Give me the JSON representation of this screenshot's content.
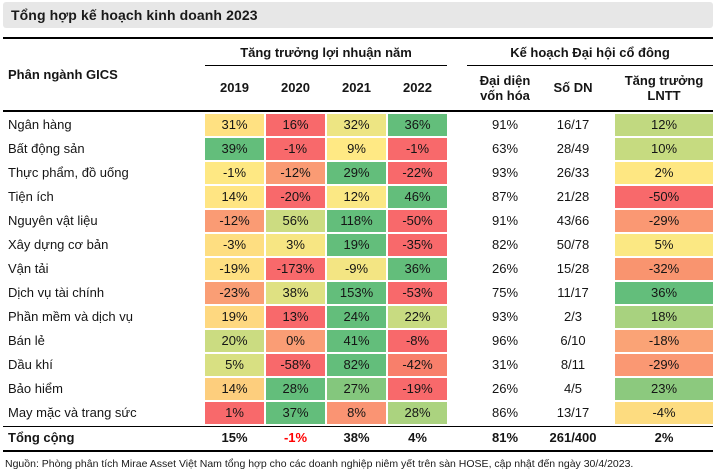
{
  "title": "Tổng hợp kế hoạch kinh doanh 2023",
  "colors": {
    "title_bar_bg": "#E7E7E7",
    "rule": "#000000",
    "total_negative_text": "#FF0000",
    "heat_red": "#F8696B",
    "heat_yellow": "#FFEB84",
    "heat_green": "#63BE7B"
  },
  "table": {
    "row_header": "Phân ngành GICS",
    "group1": {
      "label": "Tăng trưởng lợi nhuận năm",
      "columns": [
        "2019",
        "2020",
        "2021",
        "2022"
      ]
    },
    "group2": {
      "label": "Kế hoạch Đại hội cổ đông",
      "columns": [
        "Đại diện vốn hóa",
        "Số DN",
        "Tăng trưởng LNTT"
      ]
    },
    "rows": [
      {
        "label": "Ngân hàng",
        "growth": [
          {
            "v": "31%",
            "bg": "#FFE182"
          },
          {
            "v": "16%",
            "bg": "#F8696B"
          },
          {
            "v": "32%",
            "bg": "#EDE583"
          },
          {
            "v": "36%",
            "bg": "#63BE7B"
          }
        ],
        "cap": "91%",
        "count": "16/17",
        "lntt": {
          "v": "12%",
          "bg": "#C1D980"
        }
      },
      {
        "label": "Bất động sản",
        "growth": [
          {
            "v": "39%",
            "bg": "#63BE7B"
          },
          {
            "v": "-1%",
            "bg": "#F8696B"
          },
          {
            "v": "9%",
            "bg": "#FFE984"
          },
          {
            "v": "-1%",
            "bg": "#F8696B"
          }
        ],
        "cap": "63%",
        "count": "28/49",
        "lntt": {
          "v": "10%",
          "bg": "#C6DB80"
        }
      },
      {
        "label": "Thực phẩm, đồ uống",
        "growth": [
          {
            "v": "-1%",
            "bg": "#FEE883"
          },
          {
            "v": "-12%",
            "bg": "#FA9B74"
          },
          {
            "v": "29%",
            "bg": "#63BE7B"
          },
          {
            "v": "-22%",
            "bg": "#F8696B"
          }
        ],
        "cap": "93%",
        "count": "26/33",
        "lntt": {
          "v": "2%",
          "bg": "#FEE782"
        }
      },
      {
        "label": "Tiện ích",
        "growth": [
          {
            "v": "14%",
            "bg": "#FFE583"
          },
          {
            "v": "-20%",
            "bg": "#F8696B"
          },
          {
            "v": "12%",
            "bg": "#FBE884"
          },
          {
            "v": "46%",
            "bg": "#63BE7B"
          }
        ],
        "cap": "87%",
        "count": "21/28",
        "lntt": {
          "v": "-50%",
          "bg": "#F8696B"
        }
      },
      {
        "label": "Nguyên vật liệu",
        "growth": [
          {
            "v": "-12%",
            "bg": "#FA9B74"
          },
          {
            "v": "56%",
            "bg": "#CCDC81"
          },
          {
            "v": "118%",
            "bg": "#63BE7B"
          },
          {
            "v": "-50%",
            "bg": "#F8696B"
          }
        ],
        "cap": "91%",
        "count": "43/66",
        "lntt": {
          "v": "-29%",
          "bg": "#FA9873"
        }
      },
      {
        "label": "Xây dựng cơ bản",
        "growth": [
          {
            "v": "-3%",
            "bg": "#FEDE81"
          },
          {
            "v": "3%",
            "bg": "#F7E683"
          },
          {
            "v": "19%",
            "bg": "#63BE7B"
          },
          {
            "v": "-35%",
            "bg": "#F8696B"
          }
        ],
        "cap": "82%",
        "count": "50/78",
        "lntt": {
          "v": "5%",
          "bg": "#FBE883"
        }
      },
      {
        "label": "Vận tải",
        "growth": [
          {
            "v": "-19%",
            "bg": "#FEDF81"
          },
          {
            "v": "-173%",
            "bg": "#F8696B"
          },
          {
            "v": "-9%",
            "bg": "#F3E583"
          },
          {
            "v": "36%",
            "bg": "#63BE7B"
          }
        ],
        "cap": "26%",
        "count": "15/28",
        "lntt": {
          "v": "-32%",
          "bg": "#F9946F"
        }
      },
      {
        "label": "Dịch vụ tài chính",
        "growth": [
          {
            "v": "-23%",
            "bg": "#FA9E75"
          },
          {
            "v": "38%",
            "bg": "#DFE182"
          },
          {
            "v": "153%",
            "bg": "#63BE7B"
          },
          {
            "v": "-53%",
            "bg": "#F8696B"
          }
        ],
        "cap": "75%",
        "count": "11/17",
        "lntt": {
          "v": "36%",
          "bg": "#63BE7B"
        }
      },
      {
        "label": "Phần mềm và dịch vụ",
        "growth": [
          {
            "v": "19%",
            "bg": "#FED880"
          },
          {
            "v": "13%",
            "bg": "#F8696B"
          },
          {
            "v": "24%",
            "bg": "#63BE7B"
          },
          {
            "v": "22%",
            "bg": "#C8DB81"
          }
        ],
        "cap": "93%",
        "count": "2/3",
        "lntt": {
          "v": "18%",
          "bg": "#A8D27F"
        }
      },
      {
        "label": "Bán lẻ",
        "growth": [
          {
            "v": "20%",
            "bg": "#CBDC81"
          },
          {
            "v": "0%",
            "bg": "#FA9D75"
          },
          {
            "v": "41%",
            "bg": "#63BE7B"
          },
          {
            "v": "-8%",
            "bg": "#F8696B"
          }
        ],
        "cap": "96%",
        "count": "6/10",
        "lntt": {
          "v": "-18%",
          "bg": "#FAA376"
        }
      },
      {
        "label": "Dầu khí",
        "growth": [
          {
            "v": "5%",
            "bg": "#D8E082"
          },
          {
            "v": "-58%",
            "bg": "#F8696B"
          },
          {
            "v": "82%",
            "bg": "#63BE7B"
          },
          {
            "v": "-42%",
            "bg": "#F87F6B"
          }
        ],
        "cap": "31%",
        "count": "8/11",
        "lntt": {
          "v": "-29%",
          "bg": "#FA9873"
        }
      },
      {
        "label": "Bảo hiểm",
        "growth": [
          {
            "v": "14%",
            "bg": "#FDCE7D"
          },
          {
            "v": "28%",
            "bg": "#63BE7B"
          },
          {
            "v": "27%",
            "bg": "#84C77D"
          },
          {
            "v": "-19%",
            "bg": "#F8696B"
          }
        ],
        "cap": "26%",
        "count": "4/5",
        "lntt": {
          "v": "23%",
          "bg": "#8CC97E"
        }
      },
      {
        "label": "May mặc và trang sức",
        "growth": [
          {
            "v": "1%",
            "bg": "#F8696B"
          },
          {
            "v": "37%",
            "bg": "#63BE7B"
          },
          {
            "v": "8%",
            "bg": "#FA9473"
          },
          {
            "v": "28%",
            "bg": "#ABD37F"
          }
        ],
        "cap": "86%",
        "count": "13/17",
        "lntt": {
          "v": "-4%",
          "bg": "#FDDC80"
        }
      }
    ],
    "total": {
      "label": "Tổng cộng",
      "growth": [
        "15%",
        "-1%",
        "38%",
        "4%"
      ],
      "cap": "81%",
      "count": "261/400",
      "lntt": "2%"
    }
  },
  "footer": "Nguồn: Phòng phân tích Mirae Asset Việt Nam tổng hợp cho các doanh nghiệp niêm yết trên sàn HOSE, cập nhật đến ngày 30/4/2023.",
  "chart_data": {
    "type": "heatmap",
    "title": "Tổng hợp kế hoạch kinh doanh 2023",
    "row_label_header": "Phân ngành GICS",
    "column_groups": [
      {
        "label": "Tăng trưởng lợi nhuận năm",
        "columns": [
          "2019",
          "2020",
          "2021",
          "2022"
        ]
      },
      {
        "label": "Kế hoạch Đại hội cổ đông",
        "columns": [
          "Đại diện vốn hóa",
          "Số DN",
          "Tăng trưởng LNTT"
        ]
      }
    ],
    "units": {
      "growth_2019_2022": "percent",
      "dai_dien_von_hoa": "percent",
      "so_dn": "ratio",
      "tang_truong_lntt": "percent"
    },
    "rows": [
      {
        "category": "Ngân hàng",
        "growth": [
          31,
          16,
          32,
          36
        ],
        "dai_dien_von_hoa": 91,
        "so_dn": "16/17",
        "tang_truong_lntt": 12
      },
      {
        "category": "Bất động sản",
        "growth": [
          39,
          -1,
          9,
          -1
        ],
        "dai_dien_von_hoa": 63,
        "so_dn": "28/49",
        "tang_truong_lntt": 10
      },
      {
        "category": "Thực phẩm, đồ uống",
        "growth": [
          -1,
          -12,
          29,
          -22
        ],
        "dai_dien_von_hoa": 93,
        "so_dn": "26/33",
        "tang_truong_lntt": 2
      },
      {
        "category": "Tiện ích",
        "growth": [
          14,
          -20,
          12,
          46
        ],
        "dai_dien_von_hoa": 87,
        "so_dn": "21/28",
        "tang_truong_lntt": -50
      },
      {
        "category": "Nguyên vật liệu",
        "growth": [
          -12,
          56,
          118,
          -50
        ],
        "dai_dien_von_hoa": 91,
        "so_dn": "43/66",
        "tang_truong_lntt": -29
      },
      {
        "category": "Xây dựng cơ bản",
        "growth": [
          -3,
          3,
          19,
          -35
        ],
        "dai_dien_von_hoa": 82,
        "so_dn": "50/78",
        "tang_truong_lntt": 5
      },
      {
        "category": "Vận tải",
        "growth": [
          -19,
          -173,
          -9,
          36
        ],
        "dai_dien_von_hoa": 26,
        "so_dn": "15/28",
        "tang_truong_lntt": -32
      },
      {
        "category": "Dịch vụ tài chính",
        "growth": [
          -23,
          38,
          153,
          -53
        ],
        "dai_dien_von_hoa": 75,
        "so_dn": "11/17",
        "tang_truong_lntt": 36
      },
      {
        "category": "Phần mềm và dịch vụ",
        "growth": [
          19,
          13,
          24,
          22
        ],
        "dai_dien_von_hoa": 93,
        "so_dn": "2/3",
        "tang_truong_lntt": 18
      },
      {
        "category": "Bán lẻ",
        "growth": [
          20,
          0,
          41,
          -8
        ],
        "dai_dien_von_hoa": 96,
        "so_dn": "6/10",
        "tang_truong_lntt": -18
      },
      {
        "category": "Dầu khí",
        "growth": [
          5,
          -58,
          82,
          -42
        ],
        "dai_dien_von_hoa": 31,
        "so_dn": "8/11",
        "tang_truong_lntt": -29
      },
      {
        "category": "Bảo hiểm",
        "growth": [
          14,
          28,
          27,
          -19
        ],
        "dai_dien_von_hoa": 26,
        "so_dn": "4/5",
        "tang_truong_lntt": 23
      },
      {
        "category": "May mặc và trang sức",
        "growth": [
          1,
          37,
          8,
          28
        ],
        "dai_dien_von_hoa": 86,
        "so_dn": "13/17",
        "tang_truong_lntt": -4
      }
    ],
    "total": {
      "category": "Tổng cộng",
      "growth": [
        15,
        -1,
        38,
        4
      ],
      "dai_dien_von_hoa": 81,
      "so_dn": "261/400",
      "tang_truong_lntt": 2
    },
    "color_scale": {
      "low": "#F8696B",
      "mid": "#FFEB84",
      "high": "#63BE7B",
      "note": "per-row scale for year columns; column scale for Tăng trưởng LNTT"
    }
  }
}
